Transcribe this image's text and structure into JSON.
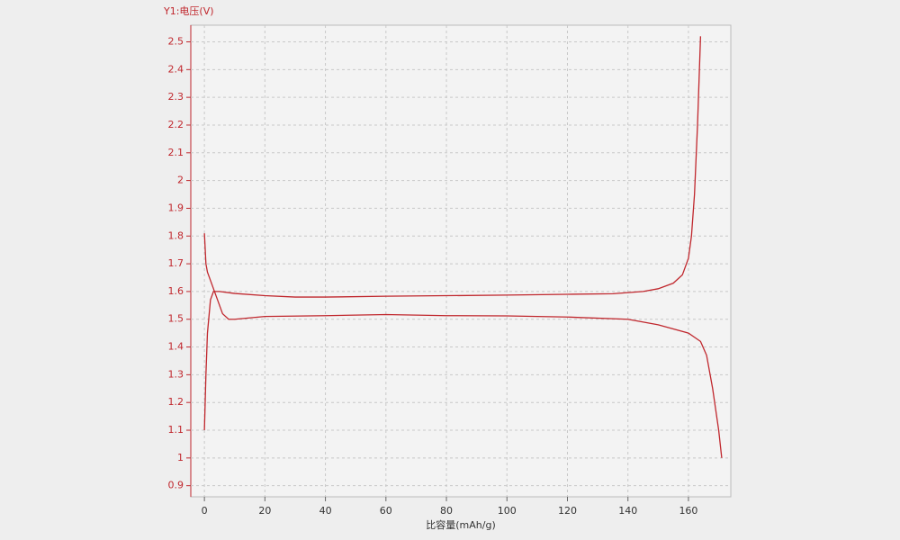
{
  "chart_data": {
    "type": "line",
    "y_label": "Y1:电压(V)",
    "x_label": "比容量(mAh/g)",
    "xlim": [
      -4.5,
      174
    ],
    "ylim": [
      0.86,
      2.56
    ],
    "xticks": [
      0,
      20,
      40,
      60,
      80,
      100,
      120,
      140,
      160
    ],
    "yticks": [
      0.9,
      1,
      1.1,
      1.2,
      1.3,
      1.4,
      1.5,
      1.6,
      1.7,
      1.8,
      1.9,
      2,
      2.1,
      2.2,
      2.3,
      2.4,
      2.5
    ],
    "grid": true,
    "axis_color": "#c0272d",
    "series": [
      {
        "color": "#c0272d",
        "x": [
          0,
          0.5,
          1,
          2,
          3,
          5,
          10,
          20,
          30,
          40,
          60,
          80,
          100,
          120,
          135,
          145,
          150,
          155,
          158,
          160,
          161,
          162,
          163,
          164
        ],
        "values": [
          1.1,
          1.3,
          1.45,
          1.57,
          1.6,
          1.6,
          1.593,
          1.585,
          1.58,
          1.58,
          1.583,
          1.585,
          1.587,
          1.59,
          1.592,
          1.6,
          1.61,
          1.63,
          1.66,
          1.72,
          1.8,
          1.95,
          2.2,
          2.52
        ]
      },
      {
        "color": "#c0272d",
        "x": [
          0,
          0.5,
          1,
          2,
          4,
          6,
          8,
          10,
          20,
          40,
          60,
          80,
          100,
          120,
          140,
          150,
          160,
          164,
          166,
          168,
          170,
          171
        ],
        "values": [
          1.81,
          1.7,
          1.67,
          1.64,
          1.58,
          1.52,
          1.5,
          1.5,
          1.51,
          1.513,
          1.517,
          1.513,
          1.512,
          1.508,
          1.5,
          1.48,
          1.45,
          1.42,
          1.37,
          1.25,
          1.1,
          1.0
        ]
      }
    ]
  }
}
